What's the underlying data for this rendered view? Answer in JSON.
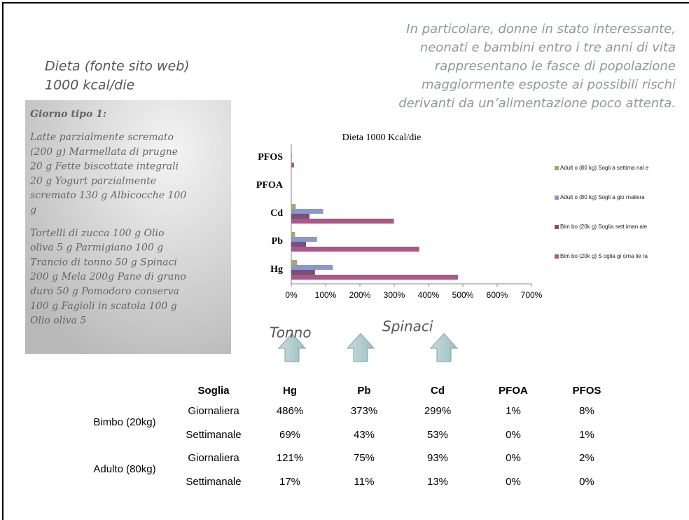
{
  "header": {
    "title_lines": [
      "Dieta (fonte sito web)",
      "1000 kcal/die"
    ],
    "note_lines": [
      "In particolare, donne in stato interessante,",
      "neonati e bambini entro i tre anni di vita",
      "rappresentano le fasce di popolazione",
      "maggiormente esposte ai possibili rischi",
      "derivanti da un’alimentazione poco attenta."
    ]
  },
  "diet": {
    "title": "Giorno tipo 1:",
    "paragraphs": [
      [
        "Latte parzialmente scremato",
        "(200 g) Marmellata di prugne",
        "20 g Fette biscottate integrali",
        "20 g Yogurt parzialmente",
        "scremato 130 g Albicocche 100",
        "g"
      ],
      [
        "Tortelli di zucca 100 g Olio",
        "oliva 5 g Parmigiano 100 g",
        "Trancio di tonno 50 g Spinaci",
        "200 g Mela 200g Pane di grano",
        "duro 50 g Pomodoro conserva",
        "100 g Fagioli in scatola 100 g",
        "Olio oliva 5"
      ]
    ]
  },
  "chart_data": {
    "type": "hbar",
    "title": "Dieta 1000 Kcal/die",
    "categories": [
      "Hg",
      "Pb",
      "Cd",
      "PFOA",
      "PFOS"
    ],
    "series": [
      {
        "name": "Adult o (80 kg) Sogli a settima nal e",
        "color": "#a3a86c",
        "values": [
          17,
          11,
          13,
          0,
          0
        ]
      },
      {
        "name": "Adult o (80 kg) Sogli a gio rnaliera",
        "color": "#8a97cc",
        "values": [
          121,
          75,
          93,
          0,
          2
        ]
      },
      {
        "name": "Bim bo (20k g) Soglia sett iman ale",
        "color": "#7d4e7a",
        "values": [
          69,
          43,
          53,
          0,
          1
        ]
      },
      {
        "name": "Bim bo (20k g) S oglia gi orna lie ra",
        "color": "#a75a87",
        "values": [
          486,
          373,
          299,
          1,
          8
        ]
      }
    ],
    "xlim": [
      0,
      700
    ],
    "xticks": [
      {
        "value": 0,
        "label": "0%"
      },
      {
        "value": 100,
        "label": "100%"
      },
      {
        "value": 200,
        "label": "200%"
      },
      {
        "value": 300,
        "label": "300%"
      },
      {
        "value": 400,
        "label": "400%"
      },
      {
        "value": 500,
        "label": "500%"
      },
      {
        "value": 600,
        "label": "600%"
      },
      {
        "value": 700,
        "label": "700%"
      }
    ],
    "legend": "right"
  },
  "annotations": {
    "tonno": "Tonno",
    "spinaci": "Spinaci"
  },
  "table": {
    "header": [
      "Soglia",
      "Hg",
      "Pb",
      "Cd",
      "PFOA",
      "PFOS"
    ],
    "groups": [
      {
        "label": "Bimbo (20kg)",
        "rows": [
          [
            "Giornaliera",
            "486%",
            "373%",
            "299%",
            "1%",
            "8%"
          ],
          [
            "Settimanale",
            "69%",
            "43%",
            "53%",
            "0%",
            "1%"
          ]
        ]
      },
      {
        "label": "Adulto (80kg)",
        "rows": [
          [
            "Giornaliera",
            "121%",
            "75%",
            "93%",
            "0%",
            "2%"
          ],
          [
            "Settimanale",
            "17%",
            "11%",
            "13%",
            "0%",
            "0%"
          ]
        ]
      }
    ]
  }
}
